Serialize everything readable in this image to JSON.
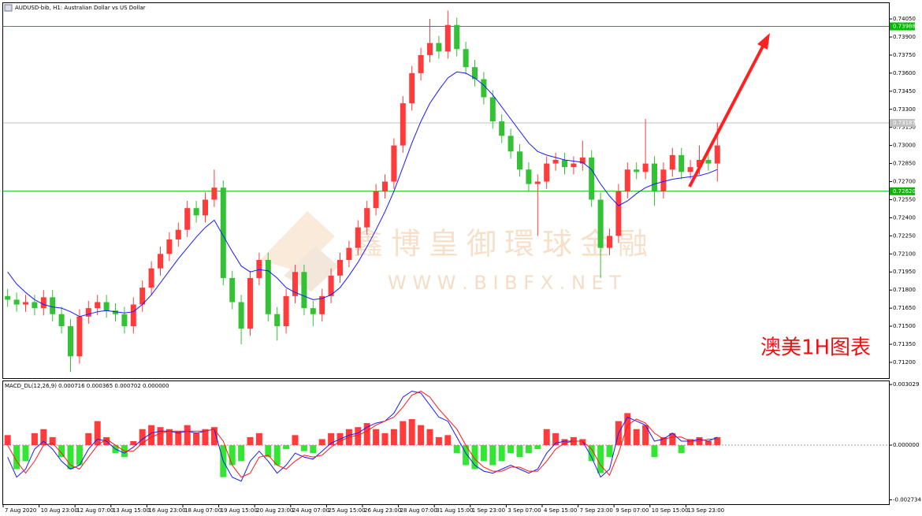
{
  "chart_data": [
    {
      "type": "candlestick",
      "title": "AUDUSD-bib, H1: Australian Dollar vs US Dollar",
      "categories": [
        "7 Aug 2020",
        null,
        null,
        null,
        "10 Aug 23:00",
        null,
        null,
        null,
        "12 Aug 07:00",
        null,
        null,
        null,
        "13 Aug 15:00",
        null,
        null,
        null,
        "16 Aug 23:00",
        null,
        null,
        null,
        "18 Aug 07:00",
        null,
        null,
        null,
        "19 Aug 15:00",
        null,
        null,
        null,
        "20 Aug 23:00",
        null,
        null,
        null,
        "24 Aug 07:00",
        null,
        null,
        null,
        "25 Aug 15:00",
        null,
        null,
        null,
        "26 Aug 23:00",
        null,
        null,
        null,
        "28 Aug 07:00",
        null,
        null,
        null,
        "31 Aug 15:00",
        null,
        null,
        null,
        "1 Sep 23:00",
        null,
        null,
        null,
        "3 Sep 07:00",
        null,
        null,
        null,
        "4 Sep 15:00",
        null,
        null,
        null,
        "7 Sep 23:00",
        null,
        null,
        null,
        "9 Sep 07:00",
        null,
        null,
        null,
        "10 Sep 15:00",
        null,
        null,
        null,
        "13 Sep 23:00",
        null,
        null,
        null
      ],
      "open": [
        0.7175,
        0.7172,
        0.7168,
        0.717,
        0.7165,
        0.7174,
        0.716,
        0.715,
        0.7125,
        0.7158,
        0.7165,
        0.717,
        0.7163,
        0.716,
        0.715,
        0.7168,
        0.7182,
        0.7198,
        0.721,
        0.7222,
        0.723,
        0.7248,
        0.7242,
        0.7255,
        0.7265,
        0.719,
        0.717,
        0.7148,
        0.719,
        0.7205,
        0.716,
        0.715,
        0.7175,
        0.7195,
        0.7165,
        0.716,
        0.7175,
        0.7192,
        0.7205,
        0.7215,
        0.7232,
        0.7248,
        0.7262,
        0.727,
        0.73,
        0.7335,
        0.736,
        0.7375,
        0.7385,
        0.7378,
        0.74,
        0.738,
        0.7365,
        0.7355,
        0.734,
        0.732,
        0.7308,
        0.7295,
        0.728,
        0.7268,
        0.727,
        0.7285,
        0.7288,
        0.7282,
        0.7285,
        0.729,
        0.7255,
        0.7215,
        0.7225,
        0.7262,
        0.728,
        0.7278,
        0.7285,
        0.7262,
        0.728,
        0.7292,
        0.7278,
        0.7282,
        0.7288,
        0.7285
      ],
      "high": [
        0.7181,
        0.7178,
        0.7176,
        0.7176,
        0.718,
        0.718,
        0.7166,
        0.7156,
        0.7164,
        0.7171,
        0.7176,
        0.7176,
        0.7169,
        0.7166,
        0.7174,
        0.7188,
        0.7204,
        0.7216,
        0.7228,
        0.7236,
        0.7254,
        0.7254,
        0.7261,
        0.728,
        0.7271,
        0.7196,
        0.7176,
        0.7196,
        0.7211,
        0.7211,
        0.7166,
        0.7181,
        0.7201,
        0.7201,
        0.7171,
        0.7181,
        0.7198,
        0.7211,
        0.7221,
        0.7238,
        0.7254,
        0.7268,
        0.7276,
        0.7306,
        0.7341,
        0.7366,
        0.7381,
        0.7405,
        0.7391,
        0.7412,
        0.7406,
        0.7386,
        0.7371,
        0.7361,
        0.7346,
        0.7326,
        0.7314,
        0.7301,
        0.7286,
        0.7276,
        0.7291,
        0.7294,
        0.7294,
        0.7291,
        0.7304,
        0.7296,
        0.7261,
        0.7231,
        0.7268,
        0.7286,
        0.7286,
        0.7322,
        0.7291,
        0.7286,
        0.7298,
        0.7298,
        0.7288,
        0.73,
        0.7294,
        0.7319
      ],
      "low": [
        0.7166,
        0.7162,
        0.7162,
        0.7159,
        0.7159,
        0.7154,
        0.7144,
        0.7112,
        0.7119,
        0.7152,
        0.7159,
        0.7157,
        0.7154,
        0.7144,
        0.7144,
        0.7162,
        0.7176,
        0.7192,
        0.7204,
        0.7216,
        0.7224,
        0.7236,
        0.7236,
        0.7249,
        0.7184,
        0.7164,
        0.7135,
        0.7142,
        0.7184,
        0.7154,
        0.7138,
        0.7144,
        0.7169,
        0.7159,
        0.715,
        0.7154,
        0.7169,
        0.7186,
        0.7199,
        0.7209,
        0.7226,
        0.7242,
        0.7256,
        0.7264,
        0.7294,
        0.7329,
        0.7354,
        0.7369,
        0.7372,
        0.7372,
        0.7374,
        0.7359,
        0.7349,
        0.7334,
        0.7314,
        0.7302,
        0.7289,
        0.7274,
        0.7262,
        0.7225,
        0.7264,
        0.7279,
        0.7276,
        0.7276,
        0.7279,
        0.7249,
        0.719,
        0.7209,
        0.7219,
        0.7256,
        0.7272,
        0.7272,
        0.725,
        0.7256,
        0.7274,
        0.7272,
        0.7272,
        0.7276,
        0.7279,
        0.727
      ],
      "close": [
        0.7172,
        0.7168,
        0.717,
        0.7165,
        0.7174,
        0.716,
        0.715,
        0.7125,
        0.7158,
        0.7165,
        0.717,
        0.7163,
        0.716,
        0.715,
        0.7168,
        0.7182,
        0.7198,
        0.721,
        0.7222,
        0.723,
        0.7248,
        0.7242,
        0.7255,
        0.7265,
        0.719,
        0.717,
        0.7148,
        0.719,
        0.7205,
        0.716,
        0.715,
        0.7175,
        0.7195,
        0.7165,
        0.716,
        0.7175,
        0.7192,
        0.7205,
        0.7215,
        0.7232,
        0.7248,
        0.7262,
        0.727,
        0.73,
        0.7335,
        0.736,
        0.7375,
        0.7385,
        0.7378,
        0.74,
        0.738,
        0.7365,
        0.7355,
        0.734,
        0.732,
        0.7308,
        0.7295,
        0.728,
        0.7268,
        0.727,
        0.7285,
        0.7288,
        0.7282,
        0.7285,
        0.729,
        0.7255,
        0.7215,
        0.7225,
        0.7262,
        0.728,
        0.7278,
        0.7285,
        0.7262,
        0.728,
        0.7292,
        0.7278,
        0.7282,
        0.7288,
        0.7285,
        0.73
      ],
      "up_color": "#ff3b3b",
      "down_color": "#33c233",
      "moving_average": {
        "color": "#1a1aff",
        "values": [
          0.7195,
          0.7185,
          0.7178,
          0.7172,
          0.7168,
          0.7166,
          0.7165,
          0.7162,
          0.7158,
          0.716,
          0.7162,
          0.7163,
          0.7162,
          0.7161,
          0.7162,
          0.7168,
          0.7176,
          0.7186,
          0.7196,
          0.7206,
          0.7215,
          0.7224,
          0.7232,
          0.7238,
          0.7225,
          0.7212,
          0.72,
          0.7195,
          0.7197,
          0.7196,
          0.719,
          0.7182,
          0.7178,
          0.7175,
          0.7172,
          0.7173,
          0.7176,
          0.7182,
          0.7192,
          0.7203,
          0.7216,
          0.723,
          0.7245,
          0.7262,
          0.7282,
          0.7302,
          0.732,
          0.7335,
          0.7346,
          0.7356,
          0.7361,
          0.736,
          0.7356,
          0.735,
          0.7342,
          0.7332,
          0.7322,
          0.7312,
          0.7302,
          0.7295,
          0.7292,
          0.729,
          0.7288,
          0.7287,
          0.7286,
          0.728,
          0.7268,
          0.7258,
          0.725,
          0.7254,
          0.726,
          0.7265,
          0.7268,
          0.727,
          0.7272,
          0.7273,
          0.7274,
          0.7275,
          0.7277,
          0.728
        ]
      },
      "levels": [
        {
          "value": 0.73988,
          "color": "#00bb00"
        },
        {
          "value": 0.7262,
          "label": "0.72620",
          "color": "#00bb00"
        },
        {
          "value": 0.73187,
          "color": "#c0c0c0"
        }
      ],
      "ylim": [
        0.71069,
        0.74181
      ],
      "yticks": [
        {
          "value": 0.712,
          "label": "0.71200"
        },
        {
          "value": 0.7135,
          "label": "0.71350"
        },
        {
          "value": 0.715,
          "label": "0.71500"
        },
        {
          "value": 0.7165,
          "label": "0.71650"
        },
        {
          "value": 0.718,
          "label": "0.71800"
        },
        {
          "value": 0.7195,
          "label": "0.71950"
        },
        {
          "value": 0.721,
          "label": "0.72100"
        },
        {
          "value": 0.7225,
          "label": "0.72250"
        },
        {
          "value": 0.724,
          "label": "0.72400"
        },
        {
          "value": 0.7255,
          "label": "0.72550"
        },
        {
          "value": 0.727,
          "label": "0.72700"
        },
        {
          "value": 0.7285,
          "label": "0.72850"
        },
        {
          "value": 0.73,
          "label": "0.73000"
        },
        {
          "value": 0.7315,
          "label": "0.73150"
        },
        {
          "value": 0.733,
          "label": "0.73300"
        },
        {
          "value": 0.7345,
          "label": "0.73450"
        },
        {
          "value": 0.736,
          "label": "0.73600"
        },
        {
          "value": 0.7375,
          "label": "0.73750"
        },
        {
          "value": 0.739,
          "label": "0.73900"
        },
        {
          "value": 0.7405,
          "label": "0.74050"
        }
      ],
      "annotation": "澳美1H图表",
      "watermark": "鑫博皇御環球金融",
      "watermark_url": "W W W . B I B F X . N E T"
    },
    {
      "type": "macd",
      "title": "MACD_DL(12,26,9) 0.000716 0.000365 0.000702 0.000000",
      "up_color": "#ff3b3b",
      "down_color": "#33e633",
      "histogram": [
        0.0005,
        -0.0012,
        -0.0008,
        0.0006,
        0.0008,
        0.0004,
        -0.0006,
        -0.0012,
        -0.001,
        0.0006,
        0.0012,
        0.0004,
        -0.0004,
        -0.0006,
        0.0002,
        0.0008,
        0.001,
        0.0009,
        0.0008,
        0.0007,
        0.001,
        0.0006,
        0.0008,
        0.0009,
        -0.0016,
        -0.001,
        -0.0008,
        0.0004,
        0.0006,
        -0.0006,
        -0.001,
        -0.0002,
        0.0005,
        -0.0003,
        -0.0004,
        0.0003,
        0.0006,
        0.0006,
        0.0008,
        0.0009,
        0.0011,
        0.0008,
        0.0006,
        0.0008,
        0.0012,
        0.0013,
        0.001,
        0.0008,
        0.0004,
        0.0005,
        -0.0004,
        -0.001,
        -0.0012,
        -0.0008,
        -0.001,
        -0.0008,
        -0.0004,
        -0.0006,
        -0.0004,
        -0.0002,
        0.0008,
        0.0006,
        0.0003,
        0.0004,
        0.0003,
        -0.0008,
        -0.0014,
        -0.0006,
        0.0012,
        0.0016,
        0.0008,
        0.001,
        -0.0006,
        0.0004,
        0.0006,
        -0.0004,
        0.0003,
        0.0004,
        0.0002,
        0.0004
      ],
      "macd_line": {
        "color": "#1a1aff",
        "values": [
          -0.0006,
          -0.0016,
          -0.0012,
          -0.0002,
          0.0002,
          -0.0002,
          -0.0008,
          -0.0012,
          -0.001,
          -0.0002,
          0.0003,
          0.0002,
          -0.0002,
          -0.0004,
          -0.0001,
          0.0003,
          0.0006,
          0.0007,
          0.0007,
          0.0006,
          0.0007,
          0.0006,
          0.0007,
          0.0008,
          -0.0008,
          -0.0016,
          -0.0018,
          -0.0008,
          -0.0003,
          -0.0008,
          -0.0014,
          -0.001,
          -0.0004,
          -0.0006,
          -0.0007,
          -0.0003,
          0.0001,
          0.0003,
          0.0005,
          0.0006,
          0.0009,
          0.0011,
          0.0012,
          0.0016,
          0.0024,
          0.0027,
          0.0026,
          0.002,
          0.0014,
          0.0012,
          0.0004,
          -0.0004,
          -0.001,
          -0.0013,
          -0.0014,
          -0.0012,
          -0.001,
          -0.0012,
          -0.0014,
          -0.0012,
          -0.0004,
          0.0001,
          0.0002,
          0.0002,
          0.0002,
          -0.0006,
          -0.0016,
          -0.0012,
          0.0006,
          0.0014,
          0.0012,
          0.001,
          0.0002,
          0.0003,
          0.0006,
          0.0002,
          0.0002,
          0.0003,
          0.0002,
          0.0004
        ]
      },
      "signal_line": {
        "color": "#ff1a1a",
        "values": [
          0.0,
          -0.0008,
          -0.0014,
          -0.0008,
          0.0,
          0.0001,
          -0.0004,
          -0.001,
          -0.0012,
          -0.0006,
          0.0,
          0.0003,
          0.0,
          -0.0003,
          -0.0003,
          0.0001,
          0.0004,
          0.0006,
          0.0007,
          0.0007,
          0.0007,
          0.0007,
          0.0007,
          0.0008,
          0.0002,
          -0.001,
          -0.0016,
          -0.0014,
          -0.0006,
          -0.0005,
          -0.001,
          -0.0012,
          -0.0008,
          -0.0005,
          -0.0006,
          -0.0005,
          -0.0001,
          0.0002,
          0.0004,
          0.0005,
          0.0007,
          0.001,
          0.0012,
          0.0014,
          0.0019,
          0.0025,
          0.0027,
          0.0024,
          0.0018,
          0.0013,
          0.0008,
          0.0,
          -0.0007,
          -0.0011,
          -0.0013,
          -0.0013,
          -0.0011,
          -0.0011,
          -0.0013,
          -0.0013,
          -0.0008,
          -0.0002,
          0.0001,
          0.0002,
          0.0002,
          -0.0002,
          -0.001,
          -0.0015,
          -0.0004,
          0.001,
          0.0013,
          0.0011,
          0.0006,
          0.0003,
          0.0004,
          0.0004,
          0.0002,
          0.0002,
          0.0003,
          0.0003
        ]
      },
      "ylim": [
        -0.00295,
        0.00323
      ],
      "yticks": [
        0.003029,
        {
          "value": 0,
          "label": "0.000000"
        },
        -0.002734
      ]
    }
  ]
}
